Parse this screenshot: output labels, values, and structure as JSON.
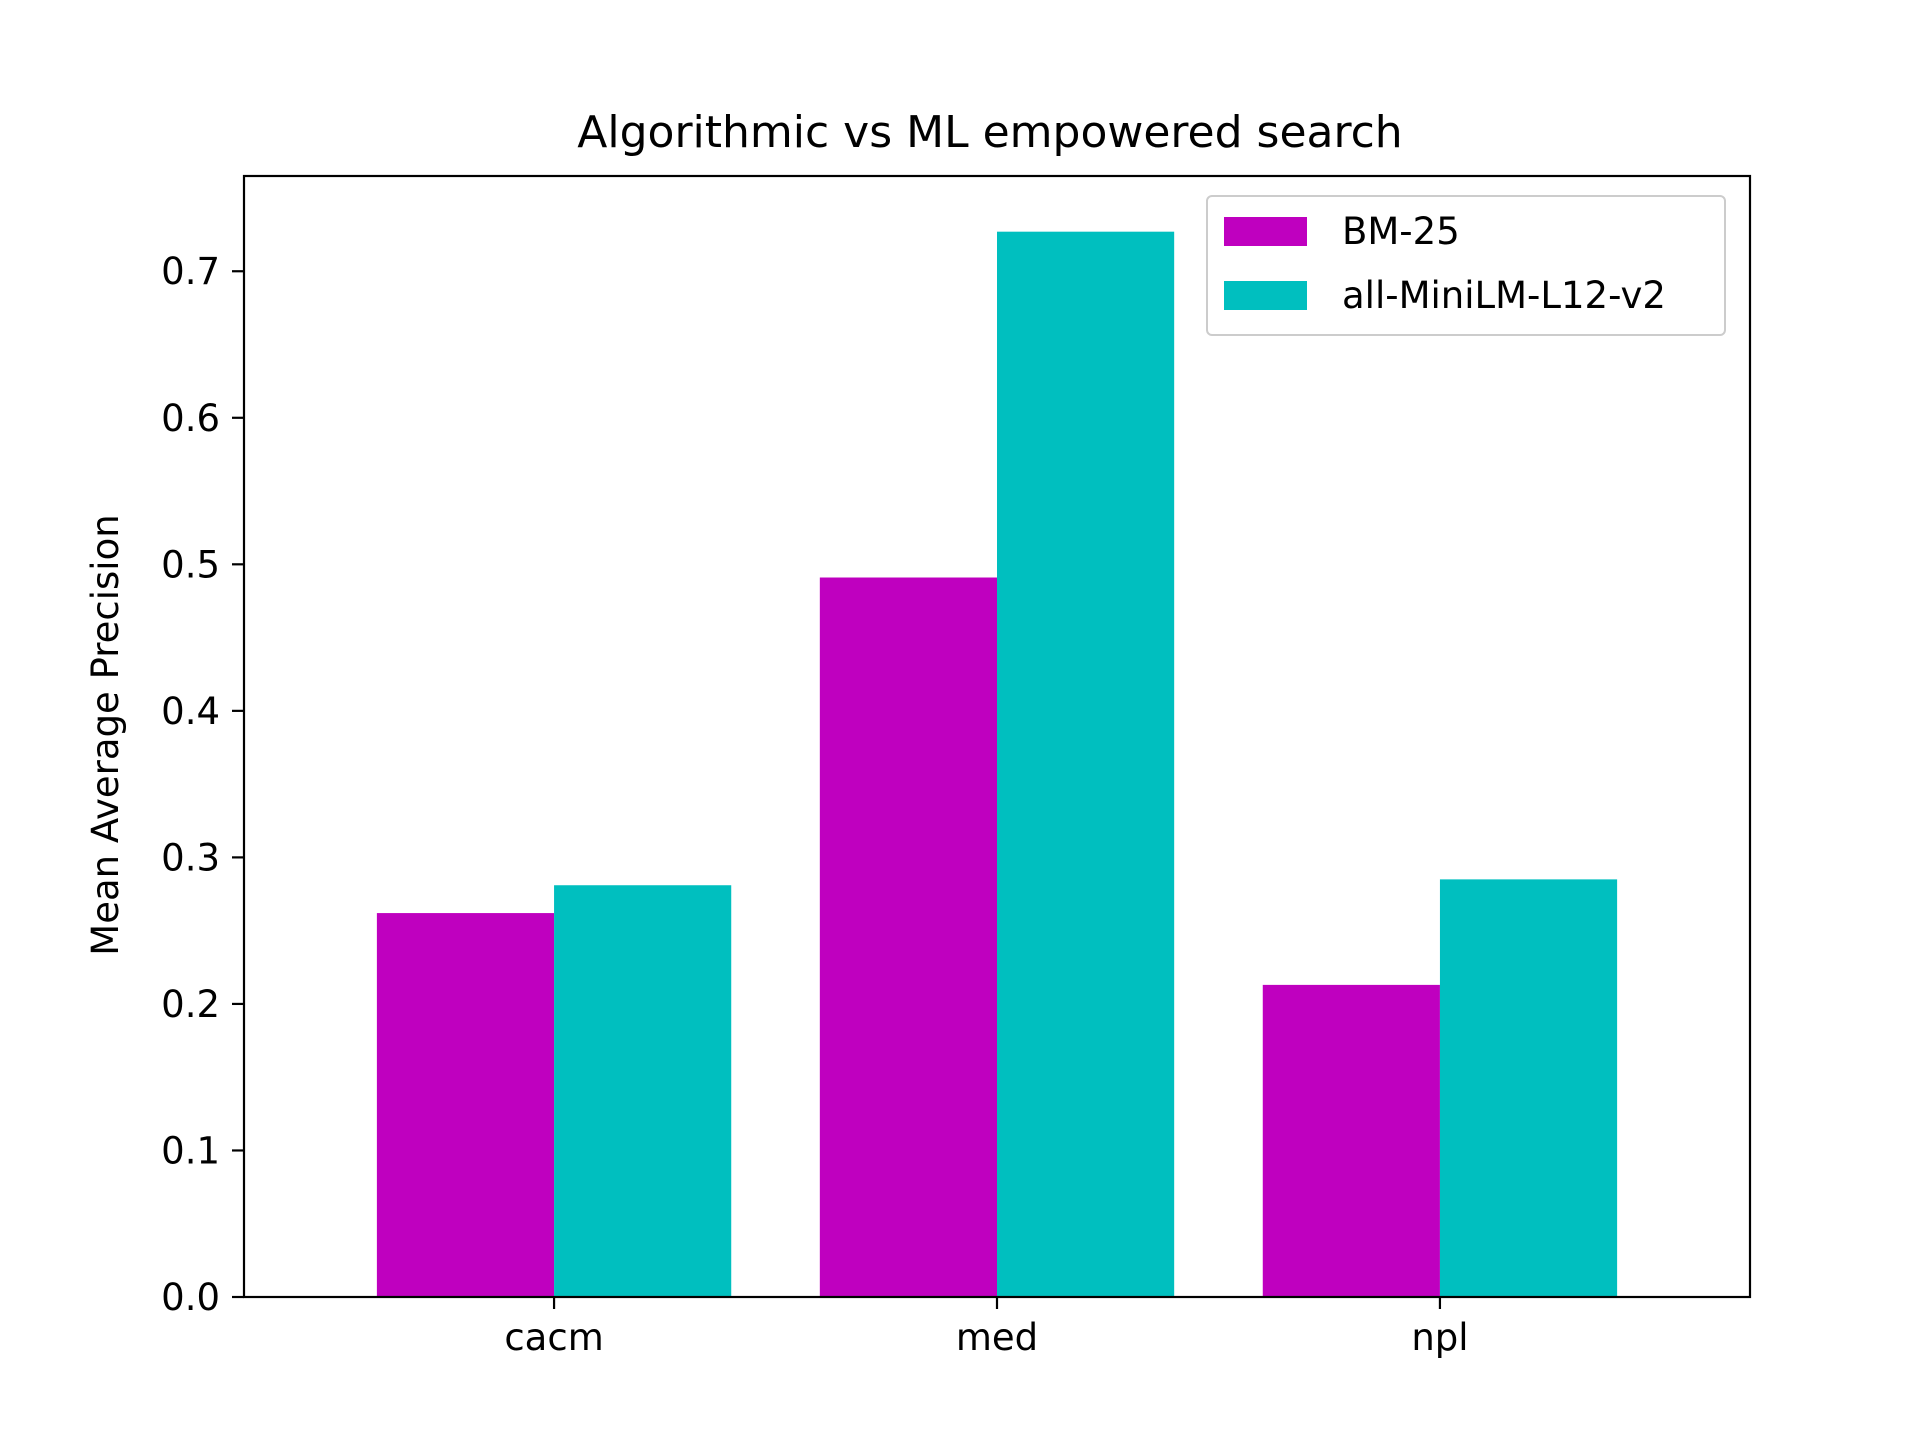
{
  "chart_data": {
    "type": "bar",
    "title": "Algorithmic vs ML empowered search",
    "xlabel": "",
    "ylabel": "Mean Average Precision",
    "categories": [
      "cacm",
      "med",
      "npl"
    ],
    "series": [
      {
        "name": "BM-25",
        "values": [
          0.262,
          0.491,
          0.213
        ],
        "color": "#bf00bf"
      },
      {
        "name": "all-MiniLM-L12-v2",
        "values": [
          0.281,
          0.727,
          0.285
        ],
        "color": "#00bfbf"
      }
    ],
    "ylim": [
      0,
      0.765
    ],
    "yticks": [
      0.0,
      0.1,
      0.2,
      0.3,
      0.4,
      0.5,
      0.6,
      0.7
    ],
    "ytick_labels": [
      "0.0",
      "0.1",
      "0.2",
      "0.3",
      "0.4",
      "0.5",
      "0.6",
      "0.7"
    ],
    "legend_position": "top-right",
    "grid": false
  }
}
